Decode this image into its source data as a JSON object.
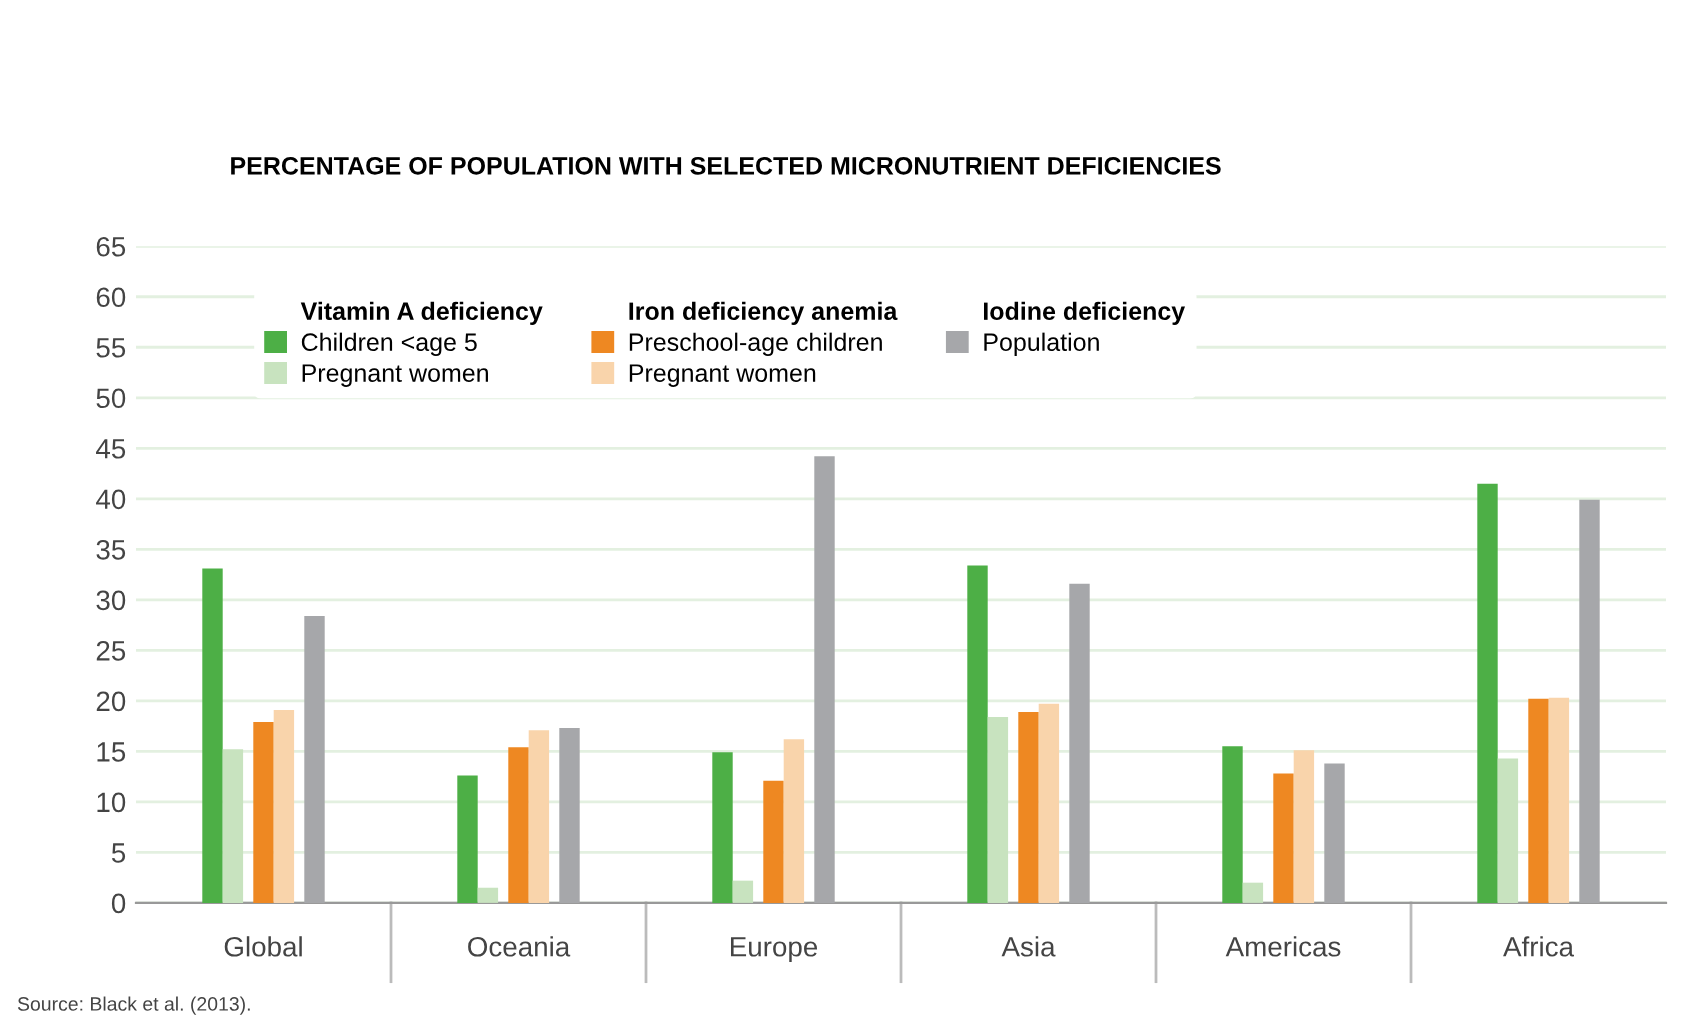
{
  "chart_data": {
    "type": "bar",
    "title": "PERCENTAGE OF POPULATION WITH SELECTED MICRONUTRIENT DEFICIENCIES",
    "categories": [
      "Global",
      "Oceania",
      "Europe",
      "Asia",
      "Americas",
      "Africa"
    ],
    "series": [
      {
        "name": "Children <age 5",
        "color": "#4daf46",
        "values": [
          33.1,
          12.6,
          14.9,
          33.4,
          15.5,
          41.5
        ]
      },
      {
        "name": "Pregnant women",
        "color": "#c8e3bf",
        "values": [
          15.2,
          1.5,
          2.2,
          18.4,
          2.0,
          14.3
        ]
      },
      {
        "name": "Preschool-age children",
        "color": "#ee8822",
        "values": [
          17.9,
          15.4,
          12.1,
          18.9,
          12.8,
          20.2
        ]
      },
      {
        "name": "Pregnant women",
        "color": "#f9d4ab",
        "values": [
          19.1,
          17.1,
          16.2,
          19.7,
          15.1,
          20.3
        ]
      },
      {
        "name": "Population",
        "color": "#a6a7aa",
        "values": [
          28.4,
          17.3,
          44.2,
          31.6,
          13.8,
          39.9
        ]
      }
    ],
    "annotations": [
      "Vitamin A deficiency",
      "Iron deficiency anemia",
      "Iodine deficiency",
      "Source: Black et al. (2013)."
    ],
    "ylim": [
      0,
      65
    ],
    "yticks": [
      0,
      5,
      10,
      15,
      20,
      25,
      30,
      35,
      40,
      45,
      50,
      55,
      60,
      65
    ],
    "grid": "y",
    "legend": "top left"
  }
}
